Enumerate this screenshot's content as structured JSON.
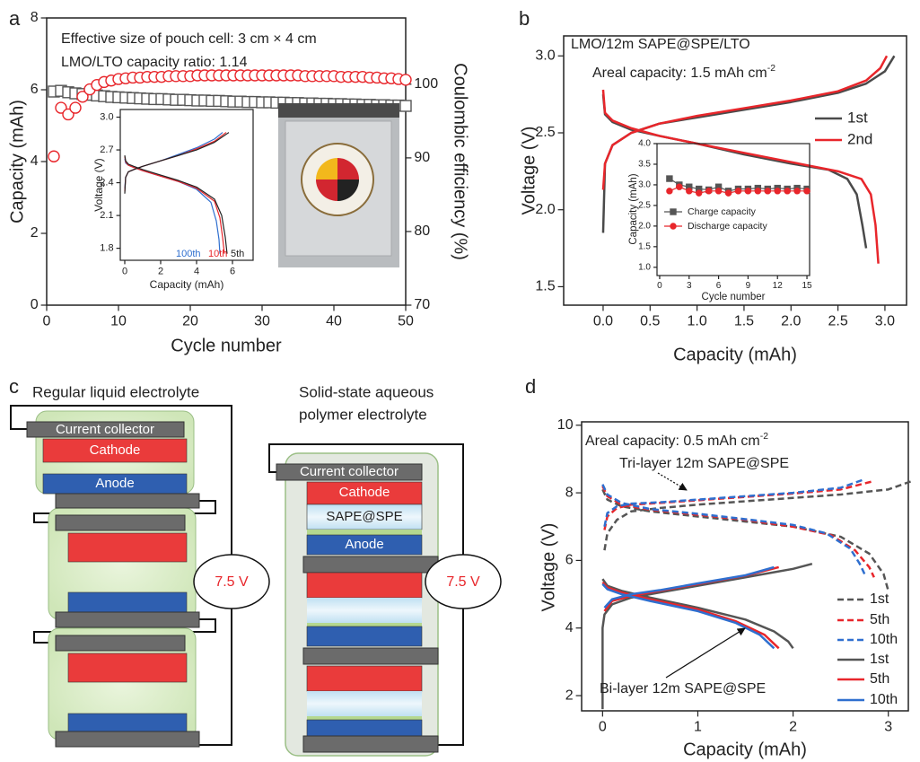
{
  "chart_data": [
    {
      "type": "scatter",
      "panel": "a",
      "xlabel": "Cycle number",
      "ylabel": "Capacity (mAh)",
      "y2label": "Coulombic efficiency (%)",
      "xlim": [
        0,
        50
      ],
      "ylim": [
        0,
        8
      ],
      "y2lim": [
        70,
        109
      ],
      "xticks": [
        0,
        10,
        20,
        30,
        40,
        50
      ],
      "yticks": [
        0,
        2,
        4,
        6,
        8
      ],
      "y2ticks": [
        70,
        80,
        90,
        100
      ],
      "annotations": [
        {
          "text": "Effective size of pouch cell: 3 cm × 4 cm"
        },
        {
          "text": "LMO/LTO capacity ratio: 1.14"
        }
      ],
      "x": [
        1,
        2,
        3,
        4,
        5,
        6,
        7,
        8,
        9,
        10,
        11,
        12,
        13,
        14,
        15,
        16,
        17,
        18,
        19,
        20,
        21,
        22,
        23,
        24,
        25,
        26,
        27,
        28,
        29,
        30,
        31,
        32,
        33,
        34,
        35,
        36,
        37,
        38,
        39,
        40,
        41,
        42,
        43,
        44,
        45,
        46,
        47,
        48,
        49,
        50
      ],
      "series": [
        {
          "color": "#555555",
          "marker": "open-square",
          "values": [
            5.95,
            5.97,
            5.93,
            5.9,
            5.88,
            5.86,
            5.84,
            5.82,
            5.8,
            5.79,
            5.78,
            5.77,
            5.76,
            5.75,
            5.74,
            5.74,
            5.73,
            5.72,
            5.72,
            5.71,
            5.7,
            5.7,
            5.69,
            5.69,
            5.68,
            5.67,
            5.67,
            5.66,
            5.66,
            5.65,
            5.65,
            5.64,
            5.64,
            5.63,
            5.63,
            5.62,
            5.62,
            5.61,
            5.61,
            5.6,
            5.6,
            5.59,
            5.59,
            5.58,
            5.58,
            5.57,
            5.57,
            5.56,
            5.56,
            5.55
          ]
        },
        {
          "color": "#e8262b",
          "marker": "open-circle",
          "axis": "y2",
          "values": [
            90.2,
            96.8,
            95.9,
            96.8,
            98.3,
            99.3,
            99.9,
            100.3,
            100.5,
            100.7,
            100.8,
            100.9,
            100.9,
            101.0,
            101.0,
            101.0,
            101.1,
            101.1,
            101.1,
            101.1,
            101.2,
            101.2,
            101.2,
            101.2,
            101.2,
            101.2,
            101.2,
            101.2,
            101.2,
            101.2,
            101.2,
            101.2,
            101.2,
            101.2,
            101.2,
            101.1,
            101.1,
            101.1,
            101.1,
            101.1,
            101.0,
            101.0,
            101.0,
            101.0,
            100.9,
            100.9,
            100.8,
            100.8,
            100.7,
            100.6
          ]
        }
      ]
    },
    {
      "type": "line",
      "xlabel": "Capacity (mAh)",
      "ylabel": "Voltage (V)",
      "xlim": [
        -0.25,
        7.15
      ],
      "ylim": [
        1.69,
        3.07
      ],
      "xticks": [
        0,
        2,
        4,
        6
      ],
      "yticks": [
        1.8,
        2.1,
        2.4,
        2.7,
        {
          "value": 3,
          "label": "3.0"
        }
      ],
      "legend": "lower center",
      "series": [
        {
          "name": "100th",
          "color": "#2f6fcf",
          "x": [
            0,
            0.05,
            0.2,
            0.5,
            1,
            2,
            3,
            4,
            5,
            5.45,
            null,
            0,
            0.05,
            0.2,
            0.5,
            1,
            2,
            3,
            4,
            4.8,
            5.1,
            5.25,
            5.3
          ],
          "values": [
            2.35,
            2.45,
            2.5,
            2.52,
            2.55,
            2.6,
            2.66,
            2.72,
            2.8,
            2.86,
            null,
            2.62,
            2.58,
            2.56,
            2.54,
            2.51,
            2.46,
            2.41,
            2.34,
            2.22,
            2.05,
            1.88,
            1.75
          ]
        },
        {
          "name": "10th",
          "color": "#e8262b",
          "x": [
            0,
            0.05,
            0.2,
            0.5,
            1,
            2,
            3,
            4,
            5,
            5.65,
            null,
            0,
            0.05,
            0.2,
            0.5,
            1,
            2,
            3,
            4,
            5,
            5.3,
            5.45,
            5.55
          ],
          "values": [
            2.32,
            2.45,
            2.5,
            2.52,
            2.55,
            2.6,
            2.65,
            2.71,
            2.78,
            2.86,
            null,
            2.64,
            2.59,
            2.56,
            2.54,
            2.51,
            2.46,
            2.41,
            2.35,
            2.23,
            2.08,
            1.9,
            1.75
          ]
        },
        {
          "name": "5th",
          "color": "#222222",
          "x": [
            0,
            0.05,
            0.2,
            0.5,
            1,
            2,
            3,
            4,
            5,
            5.8,
            null,
            0,
            0.05,
            0.2,
            0.5,
            1,
            2,
            3,
            4,
            5,
            5.4,
            5.6,
            5.7
          ],
          "values": [
            2.3,
            2.45,
            2.5,
            2.52,
            2.55,
            2.6,
            2.65,
            2.7,
            2.77,
            2.86,
            null,
            2.65,
            2.6,
            2.57,
            2.55,
            2.52,
            2.47,
            2.42,
            2.36,
            2.25,
            2.1,
            1.9,
            1.75
          ]
        }
      ]
    },
    {
      "type": "line",
      "panel": "b",
      "xlabel": "Capacity (mAh)",
      "ylabel": "Voltage (V)",
      "xlim": [
        -0.42,
        3.23
      ],
      "ylim": [
        1.38,
        3.13
      ],
      "xticks": [
        {
          "value": 0,
          "label": "0.0"
        },
        0.5,
        {
          "value": 1,
          "label": "1.0"
        },
        1.5,
        {
          "value": 2,
          "label": "2.0"
        },
        2.5,
        {
          "value": 3,
          "label": "3.0"
        }
      ],
      "yticks": [
        1.5,
        {
          "value": 2,
          "label": "2.0"
        },
        2.5,
        {
          "value": 3,
          "label": "3.0"
        }
      ],
      "legend": "right",
      "annotations": [
        {
          "text": "LMO/12m SAPE@SPE/LTO"
        },
        {
          "text": "Areal capacity: 1.5 mAh cm",
          "sup": "-2"
        }
      ],
      "series": [
        {
          "name": "1st",
          "color": "#4a4a4a",
          "x": [
            0,
            0.02,
            0.1,
            0.3,
            0.6,
            1.0,
            1.5,
            2.0,
            2.5,
            2.8,
            3.0,
            3.1,
            null,
            0,
            0.02,
            0.1,
            0.3,
            0.6,
            1.0,
            1.5,
            2.0,
            2.4,
            2.6,
            2.7,
            2.76,
            2.8
          ],
          "values": [
            1.85,
            2.3,
            2.42,
            2.5,
            2.56,
            2.6,
            2.65,
            2.7,
            2.76,
            2.82,
            2.9,
            3.0,
            null,
            2.75,
            2.62,
            2.57,
            2.52,
            2.48,
            2.43,
            2.36,
            2.3,
            2.26,
            2.2,
            2.1,
            1.9,
            1.75
          ]
        },
        {
          "name": "2nd",
          "color": "#e8262b",
          "x": [
            0,
            0.02,
            0.1,
            0.3,
            0.6,
            1.0,
            1.5,
            2.0,
            2.5,
            2.8,
            2.95,
            3.02,
            null,
            0,
            0.02,
            0.1,
            0.3,
            0.6,
            1.0,
            1.5,
            2.0,
            2.5,
            2.75,
            2.85,
            2.9,
            2.93
          ],
          "values": [
            2.13,
            2.3,
            2.42,
            2.5,
            2.56,
            2.61,
            2.66,
            2.71,
            2.77,
            2.84,
            2.92,
            3.0,
            null,
            2.78,
            2.63,
            2.58,
            2.53,
            2.48,
            2.43,
            2.37,
            2.31,
            2.25,
            2.2,
            2.1,
            1.9,
            1.65
          ]
        }
      ]
    },
    {
      "type": "line",
      "xlabel": "Cycle number",
      "ylabel": "Capacity (mAh)",
      "xlim": [
        -0.27,
        15.27
      ],
      "ylim": [
        0.8,
        4.0
      ],
      "xticks": [
        0,
        3,
        6,
        9,
        12,
        15
      ],
      "yticks": [
        {
          "value": 1,
          "label": "1.0"
        },
        1.5,
        {
          "value": 2,
          "label": "2.0"
        },
        2.5,
        {
          "value": 3,
          "label": "3.0"
        },
        3.5,
        {
          "value": 4,
          "label": "4.0"
        }
      ],
      "legend": "lower left",
      "x": [
        1,
        2,
        3,
        4,
        5,
        6,
        7,
        8,
        9,
        10,
        11,
        12,
        13,
        14,
        15
      ],
      "series": [
        {
          "name": "Charge capacity",
          "color": "#555555",
          "marker": "square",
          "values": [
            3.15,
            3.0,
            2.95,
            2.9,
            2.88,
            2.95,
            2.85,
            2.9,
            2.9,
            2.92,
            2.9,
            2.92,
            2.9,
            2.92,
            2.9
          ]
        },
        {
          "name": "Discharge capacity",
          "color": "#e8262b",
          "marker": "circle",
          "values": [
            2.85,
            2.95,
            2.85,
            2.8,
            2.85,
            2.85,
            2.8,
            2.85,
            2.85,
            2.85,
            2.85,
            2.85,
            2.85,
            2.85,
            2.85
          ]
        }
      ]
    },
    {
      "type": "line",
      "panel": "d",
      "xlabel": "Capacity (mAh)",
      "ylabel": "Voltage (V)",
      "xlim": [
        -0.22,
        3.21
      ],
      "ylim": [
        1.55,
        10.1
      ],
      "xticks": [
        0,
        1,
        2,
        3
      ],
      "yticks": [
        2,
        4,
        6,
        8,
        10
      ],
      "legend": "lower right",
      "annotations": [
        {
          "text": "Areal capacity: 0.5 mAh cm",
          "sup": "-2"
        },
        {
          "text": "Tri-layer 12m SAPE@SPE"
        },
        {
          "text": "Bi-layer 12m SAPE@SPE"
        }
      ],
      "series": [
        {
          "name": "1st",
          "color": "#555555",
          "dash": true,
          "x": [
            0.02,
            0.05,
            0.15,
            0.3,
            0.6,
            1,
            1.5,
            2,
            2.5,
            3,
            3.25,
            null,
            0,
            0.05,
            0.2,
            0.5,
            1,
            1.5,
            2,
            2.5,
            2.8,
            2.95,
            3.0
          ],
          "values": [
            6.3,
            6.8,
            7.2,
            7.45,
            7.55,
            7.65,
            7.75,
            7.85,
            7.95,
            8.1,
            8.35,
            null,
            8.1,
            7.8,
            7.6,
            7.45,
            7.3,
            7.15,
            7.0,
            6.7,
            6.2,
            5.6,
            5.1
          ]
        },
        {
          "name": "5th",
          "color": "#e8262b",
          "dash": true,
          "x": [
            0.02,
            0.05,
            0.15,
            0.3,
            0.6,
            1,
            1.5,
            2,
            2.5,
            2.85,
            null,
            0,
            0.05,
            0.2,
            0.5,
            1,
            1.5,
            2,
            2.4,
            2.65,
            2.8,
            2.85
          ],
          "values": [
            6.9,
            7.3,
            7.55,
            7.65,
            7.7,
            7.78,
            7.88,
            7.98,
            8.1,
            8.35,
            null,
            8.2,
            7.9,
            7.65,
            7.5,
            7.35,
            7.2,
            7.0,
            6.75,
            6.3,
            5.8,
            5.5
          ]
        },
        {
          "name": "10th",
          "color": "#2f6fcf",
          "dash": true,
          "x": [
            0.02,
            0.05,
            0.15,
            0.3,
            0.6,
            1,
            1.5,
            2,
            2.5,
            2.75,
            null,
            0,
            0.05,
            0.2,
            0.5,
            1,
            1.5,
            2,
            2.35,
            2.6,
            2.7,
            2.75
          ],
          "values": [
            7.0,
            7.4,
            7.6,
            7.68,
            7.72,
            7.8,
            7.9,
            8.0,
            8.15,
            8.4,
            null,
            8.25,
            7.95,
            7.7,
            7.52,
            7.38,
            7.22,
            7.05,
            6.8,
            6.35,
            5.9,
            5.6
          ]
        },
        {
          "name": "1st",
          "color": "#555555",
          "x": [
            0,
            0,
            0.02,
            0.1,
            0.3,
            0.6,
            1,
            1.5,
            2,
            2.2,
            null,
            0,
            0.05,
            0.2,
            0.5,
            1,
            1.5,
            1.8,
            1.95,
            2.0
          ],
          "values": [
            1.6,
            4.0,
            4.4,
            4.7,
            4.9,
            5.05,
            5.25,
            5.5,
            5.75,
            5.9,
            null,
            5.45,
            5.25,
            5.1,
            4.9,
            4.6,
            4.25,
            3.9,
            3.6,
            3.4
          ]
        },
        {
          "name": "5th",
          "color": "#e8262b",
          "x": [
            0.02,
            0.1,
            0.3,
            0.6,
            1,
            1.5,
            1.85,
            null,
            0,
            0.05,
            0.2,
            0.5,
            1,
            1.4,
            1.7,
            1.85
          ],
          "values": [
            4.5,
            4.8,
            4.95,
            5.1,
            5.3,
            5.55,
            5.8,
            null,
            5.35,
            5.2,
            5.05,
            4.85,
            4.55,
            4.2,
            3.8,
            3.4
          ]
        },
        {
          "name": "10th",
          "color": "#2f6fcf",
          "x": [
            0.02,
            0.1,
            0.3,
            0.6,
            1,
            1.5,
            1.8,
            null,
            0,
            0.05,
            0.2,
            0.5,
            1,
            1.4,
            1.65,
            1.8
          ],
          "values": [
            4.6,
            4.85,
            5.0,
            5.12,
            5.32,
            5.56,
            5.8,
            null,
            5.3,
            5.15,
            5.0,
            4.8,
            4.5,
            4.15,
            3.8,
            3.4
          ]
        }
      ]
    }
  ],
  "diagram": {
    "panel": "c",
    "left": {
      "title": "Regular liquid electrolyte",
      "current_collector": "Current collector",
      "cathode": "Cathode",
      "anode": "Anode",
      "voltage": "7.5 V"
    },
    "right": {
      "title": [
        "Solid-state aqueous",
        "polymer electrolyte"
      ],
      "current_collector": "Current collector",
      "cathode": "Cathode",
      "separator": "SAPE@SPE",
      "anode": "Anode",
      "voltage": "7.5 V"
    }
  }
}
